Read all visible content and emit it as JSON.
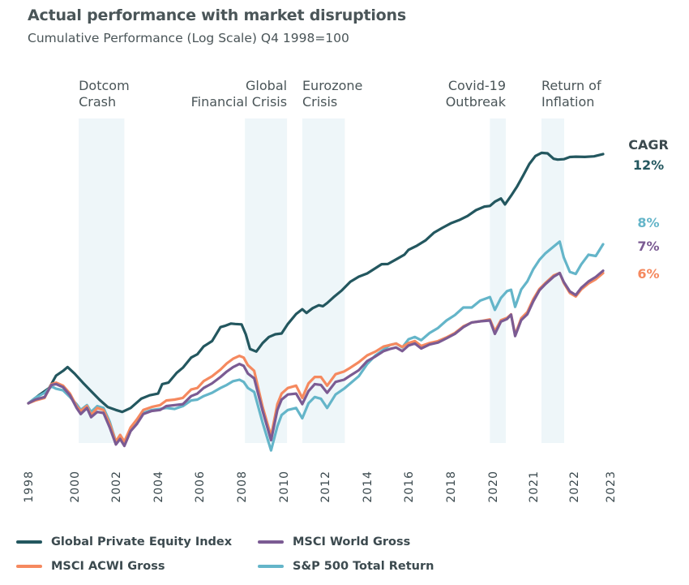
{
  "chart_data": {
    "type": "line",
    "title": "Actual performance with market disruptions",
    "subtitle": "Cumulative Performance (Log Scale) Q4 1998=100",
    "xlabel": "",
    "ylabel": "",
    "y_scale": "log",
    "y_base": 100,
    "ylim": [
      55,
      2200
    ],
    "grid": false,
    "legend_position": "bottom-left",
    "x_ticks": [
      "1998",
      "2000",
      "2002",
      "2004",
      "2006",
      "2008",
      "2010",
      "2012",
      "2014",
      "2016",
      "2018",
      "2020",
      "2021",
      "2022",
      "2023"
    ],
    "events": [
      {
        "label_lines": [
          "Dotcom",
          "Crash"
        ],
        "start": 1.1,
        "end": 2.2,
        "align": "left"
      },
      {
        "label_lines": [
          "Global",
          "Financial Crisis"
        ],
        "start": 5.08,
        "end": 6.08,
        "align": "right"
      },
      {
        "label_lines": [
          "Eurozone",
          "Crisis"
        ],
        "start": 6.45,
        "end": 7.47,
        "align": "left"
      },
      {
        "label_lines": [
          "Covid-19",
          "Outbreak"
        ],
        "start": 10.93,
        "end": 11.32,
        "align": "right"
      },
      {
        "label_lines": [
          "Return of",
          "Inflation"
        ],
        "start": 12.2,
        "end": 12.76,
        "align": "left"
      }
    ],
    "cagr_header": "CAGR",
    "series": [
      {
        "name": "Global Private Equity Index",
        "color": "#23575f",
        "cagr": "12%",
        "x": [
          0,
          0.25,
          0.45,
          0.6,
          0.75,
          0.85,
          1.0,
          1.2,
          1.4,
          1.6,
          1.8,
          2.0,
          2.15,
          2.35,
          2.6,
          2.8,
          3.0,
          3.1,
          3.25,
          3.45,
          3.6,
          3.8,
          3.95,
          4.1,
          4.3,
          4.5,
          4.6,
          4.75,
          4.85,
          5.0,
          5.1,
          5.2,
          5.35,
          5.5,
          5.65,
          5.8,
          5.95,
          6.1,
          6.3,
          6.45,
          6.55,
          6.7,
          6.85,
          6.95,
          7.05,
          7.2,
          7.4,
          7.6,
          7.8,
          8.0,
          8.2,
          8.35,
          8.5,
          8.7,
          8.9,
          9.0,
          9.2,
          9.4,
          9.6,
          9.8,
          10.0,
          10.2,
          10.4,
          10.6,
          10.8,
          10.93,
          11.05,
          11.2,
          11.3,
          11.45,
          11.6,
          11.75,
          11.9,
          12.05,
          12.2,
          12.35,
          12.5,
          12.6,
          12.75,
          12.9,
          13.05,
          13.3,
          13.55,
          13.8
        ],
        "values": [
          100,
          110,
          118,
          135,
          142,
          148,
          138,
          125,
          114,
          104,
          96,
          93,
          91,
          95,
          105,
          109,
          111,
          123,
          125,
          139,
          147,
          164,
          170,
          185,
          196,
          228,
          231,
          237,
          236,
          235,
          211,
          180,
          175,
          192,
          205,
          211,
          213,
          236,
          263,
          277,
          266,
          280,
          289,
          286,
          296,
          315,
          340,
          373,
          394,
          408,
          432,
          451,
          452,
          475,
          500,
          527,
          551,
          583,
          634,
          668,
          702,
          727,
          760,
          810,
          842,
          848,
          887,
          918,
          862,
          947,
          1048,
          1180,
          1335,
          1455,
          1506,
          1498,
          1412,
          1400,
          1406,
          1440,
          1445,
          1442,
          1450,
          1487
        ]
      },
      {
        "name": "MSCI World Gross",
        "color": "#7b5b93",
        "cagr": "7%",
        "x": [
          0,
          0.15,
          0.35,
          0.5,
          0.6,
          0.75,
          0.9,
          1.05,
          1.15,
          1.3,
          1.4,
          1.55,
          1.7,
          1.85,
          2.0,
          2.1,
          2.2,
          2.35,
          2.5,
          2.65,
          2.85,
          3.05,
          3.2,
          3.4,
          3.6,
          3.8,
          3.95,
          4.1,
          4.3,
          4.5,
          4.65,
          4.8,
          4.95,
          5.05,
          5.15,
          5.3,
          5.5,
          5.7,
          5.85,
          5.95,
          6.1,
          6.3,
          6.45,
          6.6,
          6.75,
          6.9,
          7.05,
          7.25,
          7.45,
          7.6,
          7.8,
          8.0,
          8.2,
          8.4,
          8.55,
          8.7,
          8.85,
          9.0,
          9.15,
          9.3,
          9.5,
          9.7,
          9.9,
          10.1,
          10.3,
          10.5,
          10.7,
          10.93,
          11.05,
          11.2,
          11.35,
          11.45,
          11.55,
          11.7,
          11.85,
          12.0,
          12.15,
          12.3,
          12.5,
          12.65,
          12.75,
          12.9,
          13.05,
          13.2,
          13.4,
          13.6,
          13.8
        ],
        "values": [
          100,
          104,
          107,
          122,
          123,
          119,
          109,
          95,
          89,
          95,
          86,
          91,
          90,
          77,
          64,
          68,
          63,
          74,
          80,
          89,
          92,
          93,
          97,
          98,
          99,
          108,
          111,
          118,
          124,
          133,
          141,
          148,
          153,
          150,
          138,
          131,
          92,
          67,
          93,
          104,
          110,
          111,
          99,
          114,
          123,
          122,
          112,
          126,
          129,
          135,
          143,
          158,
          166,
          176,
          180,
          183,
          176,
          187,
          191,
          181,
          189,
          193,
          202,
          212,
          228,
          240,
          243,
          245,
          212,
          242,
          249,
          261,
          207,
          246,
          262,
          302,
          340,
          364,
          394,
          410,
          372,
          336,
          323,
          349,
          374,
          393,
          420
        ]
      },
      {
        "name": "MSCI ACWI Gross",
        "color": "#f5895f",
        "cagr": "6%",
        "x": [
          0,
          0.15,
          0.35,
          0.5,
          0.6,
          0.75,
          0.9,
          1.05,
          1.15,
          1.3,
          1.4,
          1.55,
          1.7,
          1.85,
          2.0,
          2.1,
          2.2,
          2.35,
          2.5,
          2.65,
          2.85,
          3.05,
          3.2,
          3.4,
          3.6,
          3.8,
          3.95,
          4.1,
          4.3,
          4.5,
          4.65,
          4.8,
          4.95,
          5.05,
          5.15,
          5.3,
          5.5,
          5.7,
          5.85,
          5.95,
          6.1,
          6.3,
          6.45,
          6.6,
          6.75,
          6.9,
          7.05,
          7.25,
          7.45,
          7.6,
          7.8,
          8.0,
          8.2,
          8.4,
          8.55,
          8.7,
          8.85,
          9.0,
          9.15,
          9.3,
          9.5,
          9.7,
          9.9,
          10.1,
          10.3,
          10.5,
          10.7,
          10.93,
          11.05,
          11.2,
          11.35,
          11.45,
          11.55,
          11.7,
          11.85,
          12.0,
          12.15,
          12.3,
          12.5,
          12.65,
          12.75,
          12.9,
          13.05,
          13.2,
          13.4,
          13.6,
          13.8
        ],
        "values": [
          100,
          103,
          106,
          123,
          125,
          121,
          111,
          97,
          92,
          97,
          88,
          95,
          93,
          80,
          66,
          71,
          66,
          77,
          84,
          93,
          96,
          98,
          103,
          104,
          106,
          116,
          118,
          127,
          134,
          144,
          154,
          162,
          167,
          164,
          151,
          142,
          96,
          70,
          99,
          111,
          118,
          121,
          106,
          124,
          133,
          133,
          121,
          137,
          141,
          147,
          156,
          168,
          175,
          185,
          188,
          191,
          184,
          192,
          196,
          186,
          192,
          196,
          204,
          214,
          230,
          240,
          243,
          248,
          218,
          246,
          252,
          262,
          210,
          251,
          268,
          309,
          345,
          368,
          399,
          410,
          368,
          330,
          318,
          343,
          366,
          383,
          410
        ]
      },
      {
        "name": "S&P 500 Total Return",
        "color": "#64b5c9",
        "cagr": "8%",
        "x": [
          0,
          0.15,
          0.35,
          0.5,
          0.6,
          0.75,
          0.9,
          1.05,
          1.15,
          1.3,
          1.4,
          1.55,
          1.7,
          1.85,
          2.0,
          2.1,
          2.2,
          2.35,
          2.5,
          2.65,
          2.85,
          3.05,
          3.2,
          3.4,
          3.6,
          3.8,
          3.95,
          4.1,
          4.3,
          4.5,
          4.65,
          4.8,
          4.95,
          5.05,
          5.15,
          5.3,
          5.5,
          5.7,
          5.85,
          5.95,
          6.1,
          6.3,
          6.45,
          6.6,
          6.75,
          6.9,
          7.05,
          7.25,
          7.45,
          7.6,
          7.8,
          8.0,
          8.2,
          8.4,
          8.55,
          8.7,
          8.85,
          9.0,
          9.15,
          9.3,
          9.5,
          9.7,
          9.9,
          10.1,
          10.3,
          10.5,
          10.7,
          10.93,
          11.05,
          11.2,
          11.35,
          11.45,
          11.55,
          11.7,
          11.85,
          12.0,
          12.15,
          12.3,
          12.5,
          12.65,
          12.75,
          12.9,
          13.05,
          13.2,
          13.4,
          13.6,
          13.8
        ],
        "values": [
          100,
          106,
          112,
          120,
          117,
          115,
          107,
          99,
          93,
          98,
          91,
          97,
          95,
          82,
          66,
          70,
          66,
          76,
          82,
          90,
          93,
          94,
          95,
          94,
          97,
          103,
          104,
          108,
          112,
          118,
          122,
          127,
          129,
          126,
          118,
          113,
          81,
          60,
          78,
          88,
          93,
          95,
          85,
          100,
          107,
          105,
          95,
          110,
          117,
          124,
          134,
          153,
          168,
          179,
          188,
          191,
          183,
          200,
          205,
          198,
          214,
          226,
          245,
          260,
          282,
          282,
          304,
          316,
          275,
          313,
          337,
          342,
          284,
          343,
          374,
          428,
          473,
          508,
          546,
          576,
          485,
          415,
          406,
          450,
          500,
          493,
          560
        ]
      }
    ]
  },
  "legend": [
    {
      "label": "Global Private Equity Index"
    },
    {
      "label": "MSCI World Gross"
    },
    {
      "label": "MSCI ACWI Gross"
    },
    {
      "label": "S&P 500 Total Return"
    }
  ]
}
